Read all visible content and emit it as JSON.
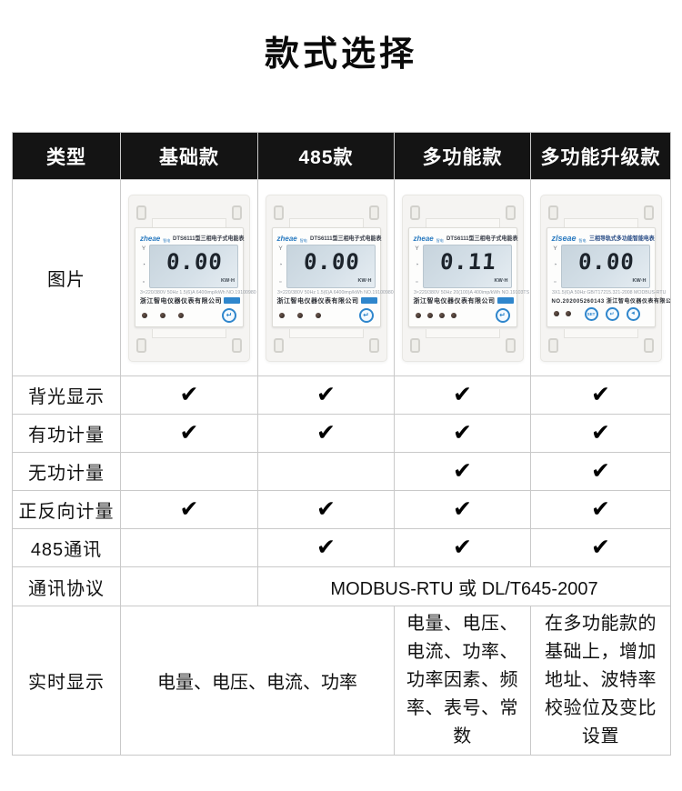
{
  "page_title": "款式选择",
  "colors": {
    "header_bg": "#141414",
    "header_text": "#ffffff",
    "table_border": "#c9c9c9",
    "checkmark": "#000000",
    "brand_blue": "#2b7bc0",
    "button_blue": "#2f86cc",
    "lcd_bg": "#ccd9e2"
  },
  "table": {
    "headers": [
      "类型",
      "基础款",
      "485款",
      "多功能款",
      "多功能升级款"
    ],
    "image_row_label": "图片",
    "feature_rows": [
      {
        "label": "背光显示",
        "checks": [
          "✔",
          "✔",
          "✔",
          "✔"
        ]
      },
      {
        "label": "有功计量",
        "checks": [
          "✔",
          "✔",
          "✔",
          "✔"
        ]
      },
      {
        "label": "无功计量",
        "checks": [
          "",
          "",
          "✔",
          "✔"
        ]
      },
      {
        "label": "正反向计量",
        "checks": [
          "✔",
          "✔",
          "✔",
          "✔"
        ]
      },
      {
        "label": "485通讯",
        "checks": [
          "",
          "✔",
          "✔",
          "✔"
        ]
      }
    ],
    "protocol_row": {
      "label": "通讯协议",
      "basic": "",
      "merged": "MODBUS-RTU 或 DL/T645-2007"
    },
    "realtime_row": {
      "label": "实时显示",
      "basic_485": "电量、电压、电流、功率",
      "multifunction": "电量、电压、电流、功率、功率因素、频率、表号、常数",
      "upgrade": "在多功能款的基础上，增加地址、波特率校验位及变比设置"
    }
  },
  "meters": [
    {
      "logo": "zheae",
      "logo_sub": "智电",
      "model": "DTS6111型三相电子式电能表",
      "display": "0.00",
      "unit": "KW·H",
      "spec": "3×220/380V 50Hz 1.5(6)A 6400imp/kWh NO.19100980",
      "company": "浙江智电仪器仪表有限公司",
      "enter_button": "↵"
    },
    {
      "logo": "zheae",
      "logo_sub": "智电",
      "model": "DTS6111型三相电子式电能表",
      "display": "0.00",
      "unit": "KW·H",
      "spec": "3×220/380V 50Hz 1.5(6)A 6400imp/kWh NO.19100980",
      "company": "浙江智电仪器仪表有限公司",
      "enter_button": "↵"
    },
    {
      "logo": "zheae",
      "logo_sub": "智电",
      "model": "DTS6111型三相电子式电能表",
      "display": "0.11",
      "unit": "KW·H",
      "spec": "3×220/380V 50Hz 20(100)A 400imp/kWh NO.19103TS",
      "company": "浙江智电仪器仪表有限公司",
      "enter_button": "↵"
    },
    {
      "logo": "zlseae",
      "logo_sub": "智电",
      "model": "三相导轨式多功能智能电表",
      "display": "0.00",
      "unit": "KW·H",
      "spec": "3X1.5(6)A 50Hz GB/T17215.321-2008 MODBUS-RTU",
      "company": "NO.202005260143 浙江智电仪器仪表有限公司",
      "buttons": [
        "SET",
        "↵",
        "◄"
      ]
    }
  ]
}
